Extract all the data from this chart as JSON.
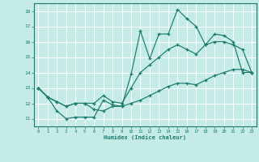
{
  "xlabel": "Humidex (Indice chaleur)",
  "background_color": "#c5ebe6",
  "grid_color": "#ffffff",
  "line_color": "#1a7a6e",
  "xlim": [
    -0.5,
    23.5
  ],
  "ylim": [
    10.5,
    18.5
  ],
  "xticks": [
    0,
    1,
    2,
    3,
    4,
    5,
    6,
    7,
    8,
    9,
    10,
    11,
    12,
    13,
    14,
    15,
    16,
    17,
    18,
    19,
    20,
    21,
    22,
    23
  ],
  "yticks": [
    11,
    12,
    13,
    14,
    15,
    16,
    17,
    18
  ],
  "line1_x": [
    0,
    1,
    2,
    3,
    4,
    5,
    6,
    7,
    8,
    9,
    10,
    11,
    12,
    13,
    14,
    15,
    16,
    17,
    18,
    19,
    20,
    21,
    22,
    23
  ],
  "line1_y": [
    13.0,
    12.4,
    11.5,
    11.0,
    11.1,
    11.1,
    11.1,
    12.2,
    11.9,
    11.8,
    13.9,
    16.7,
    14.9,
    16.5,
    16.5,
    18.1,
    17.5,
    17.0,
    15.8,
    16.5,
    16.4,
    16.0,
    14.0,
    14.0
  ],
  "line2_x": [
    0,
    1,
    2,
    3,
    4,
    5,
    6,
    7,
    8,
    9,
    10,
    11,
    12,
    13,
    14,
    15,
    16,
    17,
    18,
    19,
    20,
    21,
    22,
    23
  ],
  "line2_y": [
    13.0,
    12.4,
    12.1,
    11.8,
    12.0,
    12.0,
    12.0,
    12.5,
    12.1,
    12.0,
    13.0,
    14.0,
    14.5,
    15.0,
    15.5,
    15.8,
    15.5,
    15.2,
    15.8,
    16.0,
    16.0,
    15.8,
    15.5,
    14.0
  ],
  "line3_x": [
    0,
    1,
    2,
    3,
    4,
    5,
    6,
    7,
    8,
    9,
    10,
    11,
    12,
    13,
    14,
    15,
    16,
    17,
    18,
    19,
    20,
    21,
    22,
    23
  ],
  "line3_y": [
    13.0,
    12.4,
    12.1,
    11.8,
    12.0,
    12.0,
    11.6,
    11.5,
    11.8,
    11.8,
    12.0,
    12.2,
    12.5,
    12.8,
    13.1,
    13.3,
    13.3,
    13.2,
    13.5,
    13.8,
    14.0,
    14.2,
    14.2,
    14.0
  ]
}
